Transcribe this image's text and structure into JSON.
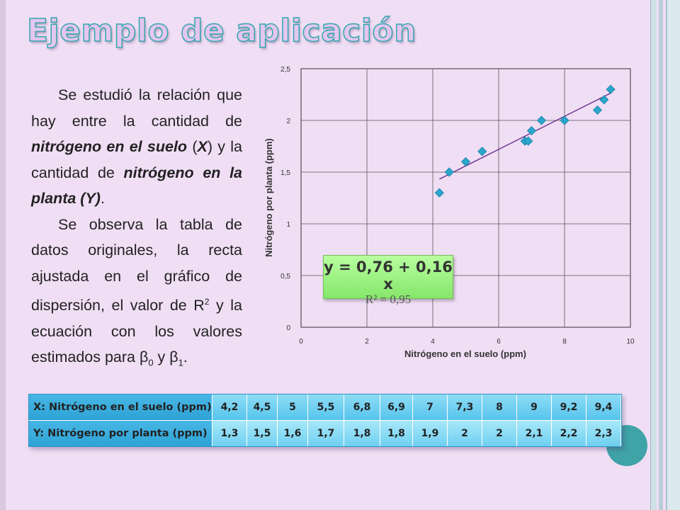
{
  "slide": {
    "title": "Ejemplo de aplicación",
    "accent_color": "#33a7ad",
    "paragraph1": {
      "p1_t1": "Se estudió la relación que hay entre la cantidad de ",
      "p1_b1": "nitrógeno en el suelo",
      "p1_t2": " (",
      "p1_b2": "X",
      "p1_t3": ") y la cantidad de ",
      "p1_b3": "nitrógeno en la planta (Y)",
      "p1_t4": "."
    },
    "paragraph2": {
      "p2_t1": "Se observa la tabla de datos originales, la recta ajustada en el gráfico de dispersión, el valor de R",
      "p2_sup": "2",
      "p2_t2": " y la ecuación con los valores estimados para β",
      "p2_sub0": "0",
      "p2_t3": " y β",
      "p2_sub1": "1",
      "p2_t4": "."
    }
  },
  "chart_data": {
    "type": "scatter",
    "xlabel": "Nitrógeno en el suelo (ppm)",
    "ylabel": "Nitrógeno por planta (ppm)",
    "xlim": [
      0,
      10
    ],
    "ylim": [
      0,
      2.5
    ],
    "x_ticks": [
      "0",
      "2",
      "4",
      "6",
      "8",
      "10"
    ],
    "y_ticks": [
      "0",
      "0,5",
      "1",
      "1,5",
      "2",
      "2,5"
    ],
    "grid": true,
    "marker_color": "#2ba6cc",
    "trendline_color": "#6a2f8a",
    "points": [
      [
        4.2,
        1.3
      ],
      [
        4.5,
        1.5
      ],
      [
        5.0,
        1.6
      ],
      [
        5.5,
        1.7
      ],
      [
        6.8,
        1.8
      ],
      [
        6.9,
        1.8
      ],
      [
        7.0,
        1.9
      ],
      [
        7.3,
        2.0
      ],
      [
        8.0,
        2.0
      ],
      [
        9.0,
        2.1
      ],
      [
        9.2,
        2.2
      ],
      [
        9.4,
        2.3
      ]
    ],
    "trendline": {
      "intercept": 0.76,
      "slope": 0.16,
      "x_range": [
        4.2,
        9.4
      ]
    },
    "equation": "y = 0,76 + 0,16 x",
    "r_squared": "R² = 0,95"
  },
  "table": {
    "x_header": "X: Nitrógeno en el suelo (ppm)",
    "y_header": "Y: Nitrógeno por planta (ppm)",
    "x_values": [
      "4,2",
      "4,5",
      "5",
      "5,5",
      "6,8",
      "6,9",
      "7",
      "7,3",
      "8",
      "9",
      "9,2",
      "9,4"
    ],
    "y_values": [
      "1,3",
      "1,5",
      "1,6",
      "1,7",
      "1,8",
      "1,8",
      "1,9",
      "2",
      "2",
      "2,1",
      "2,2",
      "2,3"
    ]
  }
}
